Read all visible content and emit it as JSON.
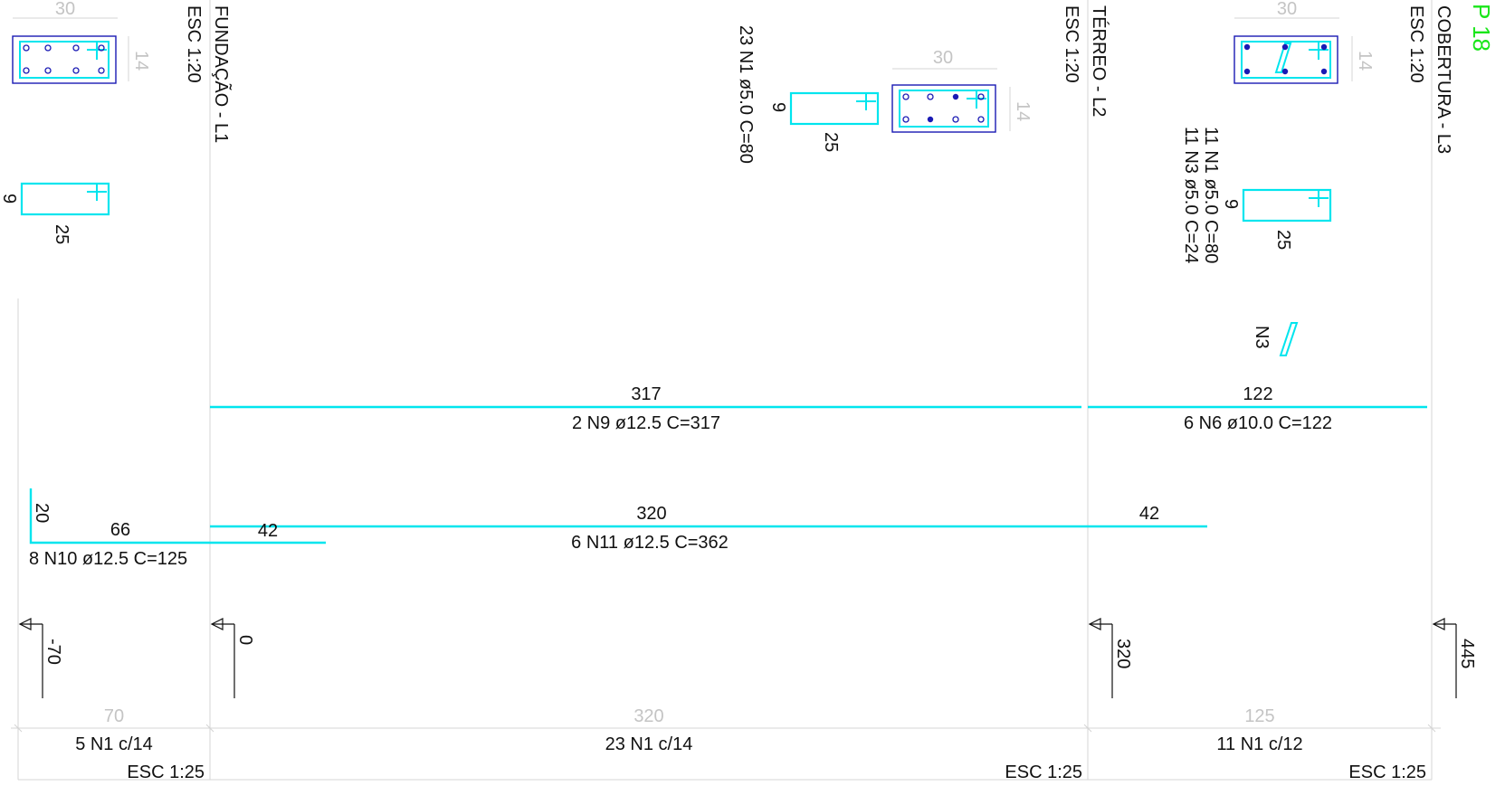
{
  "colors": {
    "rebar": "#00e5ee",
    "section_outline": "#1a1ab4",
    "dimension_gray": "#c4c4c4",
    "title_green": "#19e619",
    "text": "#111111"
  },
  "title": "P 18",
  "levels": [
    {
      "name": "FUNDAÇÃO - L1",
      "scale": "ESC 1:20",
      "elevation": "0"
    },
    {
      "name": "TÉRREO - L2",
      "scale": "ESC 1:20",
      "elevation": "320"
    },
    {
      "name": "COBERTURA - L3",
      "scale": "ESC 1:20",
      "elevation": "445"
    }
  ],
  "footing_elevation": "-70",
  "sections": [
    {
      "width": "30",
      "depth": "14"
    },
    {
      "width": "30",
      "depth": "14"
    },
    {
      "width": "30",
      "depth": "14"
    }
  ],
  "stirrups": [
    {
      "a": "9",
      "b": "25"
    },
    {
      "a": "9",
      "b": "25"
    },
    {
      "a": "9",
      "b": "25"
    }
  ],
  "stirrup_specs": {
    "mid": "23 N1 ø5.0  C=80",
    "right_1": "11 N1 ø5.0  C=80",
    "right_2": "11 N3 ø5.0  C=24"
  },
  "hook_label": "N3",
  "bars": {
    "n9": {
      "length": "317",
      "spec": "2 N9 ø12.5  C=317"
    },
    "n6": {
      "length": "122",
      "spec": "6 N6 ø10.0  C=122"
    },
    "n11": {
      "length": "320",
      "hook_left": "42",
      "hook_right": "42",
      "spec": "6 N11 ø12.5  C=362"
    },
    "n10": {
      "vertical": "20",
      "horizontal": "66",
      "spec": "8 N10 ø12.5  C=125"
    }
  },
  "spans": [
    {
      "length": "70",
      "stirrups": "5 N1 c/14",
      "scale": "ESC 1:25"
    },
    {
      "length": "320",
      "stirrups": "23 N1 c/14",
      "scale": "ESC 1:25"
    },
    {
      "length": "125",
      "stirrups": "11 N1 c/12",
      "scale": "ESC 1:25"
    }
  ]
}
